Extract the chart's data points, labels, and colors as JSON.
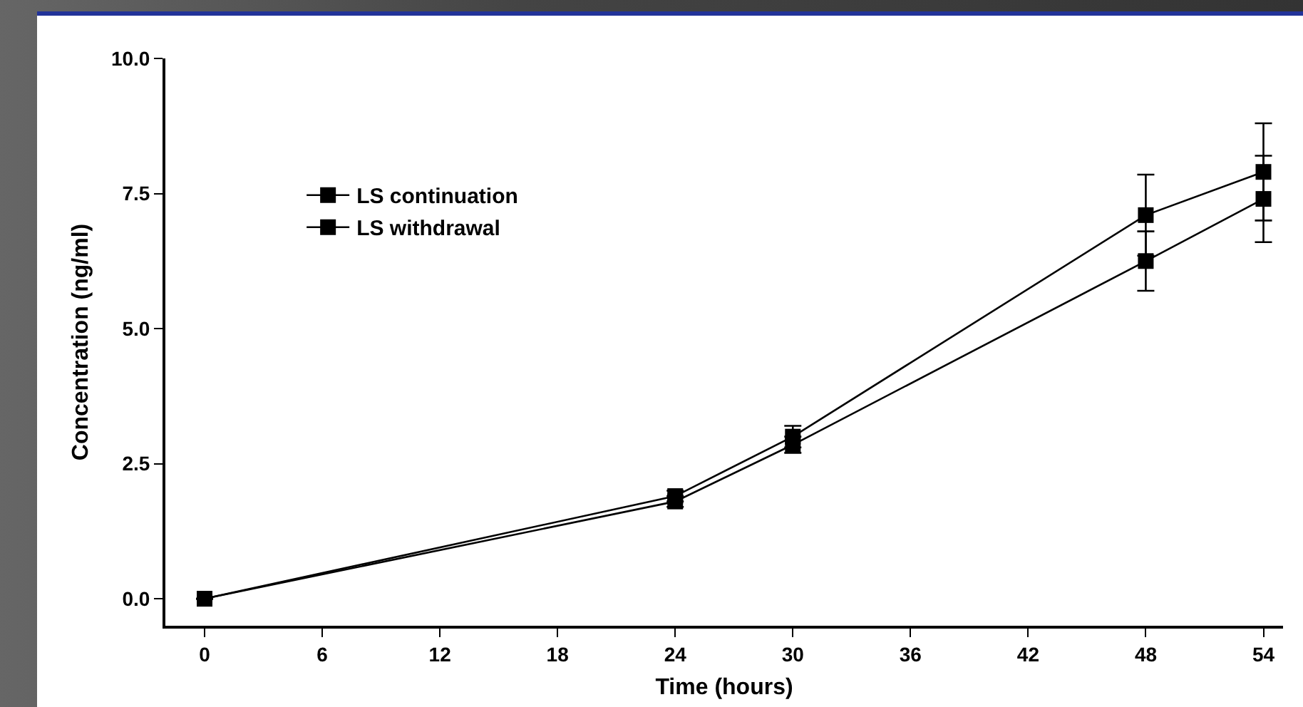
{
  "chart_data": {
    "type": "line",
    "xlabel": "Time (hours)",
    "ylabel": "Concentration (ng/ml)",
    "x": [
      0,
      24,
      30,
      48,
      54
    ],
    "series": [
      {
        "name": "LS continuation",
        "color": "#000000",
        "values": [
          0,
          1.9,
          3.0,
          7.1,
          7.9
        ],
        "errors": [
          null,
          0.1,
          0.2,
          0.75,
          0.9
        ]
      },
      {
        "name": "LS withdrawal",
        "color": "#000000",
        "values": [
          0,
          1.8,
          2.85,
          6.25,
          7.4
        ],
        "errors": [
          null,
          0.1,
          0.15,
          0.55,
          0.8
        ]
      }
    ],
    "xlim": [
      -2,
      55
    ],
    "xticks": [
      0,
      6,
      12,
      18,
      24,
      30,
      36,
      42,
      48,
      54
    ],
    "ylim": [
      -0.5,
      10
    ],
    "yticks": [
      {
        "value": 0,
        "label": "0.0"
      },
      {
        "value": 2.5,
        "label": "2.5"
      },
      {
        "value": 5,
        "label": "5.0"
      },
      {
        "value": 7.5,
        "label": "7.5"
      },
      {
        "value": 10,
        "label": "10.0"
      }
    ],
    "grid": false,
    "legend": "top left",
    "marker": "square",
    "line_style": "solid"
  }
}
